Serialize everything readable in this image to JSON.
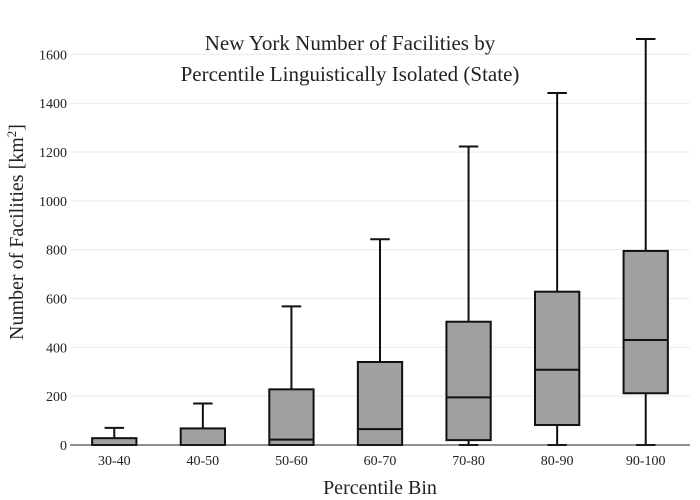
{
  "chart_data": {
    "type": "box",
    "title_lines": [
      "New York Number of Facilities by",
      "Percentile Linguistically Isolated (State)"
    ],
    "xlabel": "Percentile Bin",
    "ylabel_main": "Number of Facilities  [km",
    "ylabel_sup": "2",
    "ylabel_close": "]",
    "ylim": [
      0,
      1700
    ],
    "yticks": [
      0,
      200,
      400,
      600,
      800,
      1000,
      1200,
      1400,
      1600
    ],
    "grid": true,
    "box_color": "#a0a0a0",
    "line_color": "#111111",
    "categories": [
      "30-40",
      "40-50",
      "50-60",
      "60-70",
      "70-80",
      "80-90",
      "90-100"
    ],
    "boxes": [
      {
        "category": "30-40",
        "min": 0,
        "q1": 0,
        "median": 0,
        "q3": 28,
        "max": 70
      },
      {
        "category": "40-50",
        "min": 0,
        "q1": 0,
        "median": 0,
        "q3": 68,
        "max": 170
      },
      {
        "category": "50-60",
        "min": 0,
        "q1": 0,
        "median": 22,
        "q3": 228,
        "max": 568
      },
      {
        "category": "60-70",
        "min": 0,
        "q1": 0,
        "median": 65,
        "q3": 340,
        "max": 843
      },
      {
        "category": "70-80",
        "min": 0,
        "q1": 20,
        "median": 195,
        "q3": 505,
        "max": 1223
      },
      {
        "category": "80-90",
        "min": 0,
        "q1": 82,
        "median": 308,
        "q3": 628,
        "max": 1442
      },
      {
        "category": "90-100",
        "min": 0,
        "q1": 212,
        "median": 430,
        "q3": 795,
        "max": 1663
      }
    ]
  }
}
